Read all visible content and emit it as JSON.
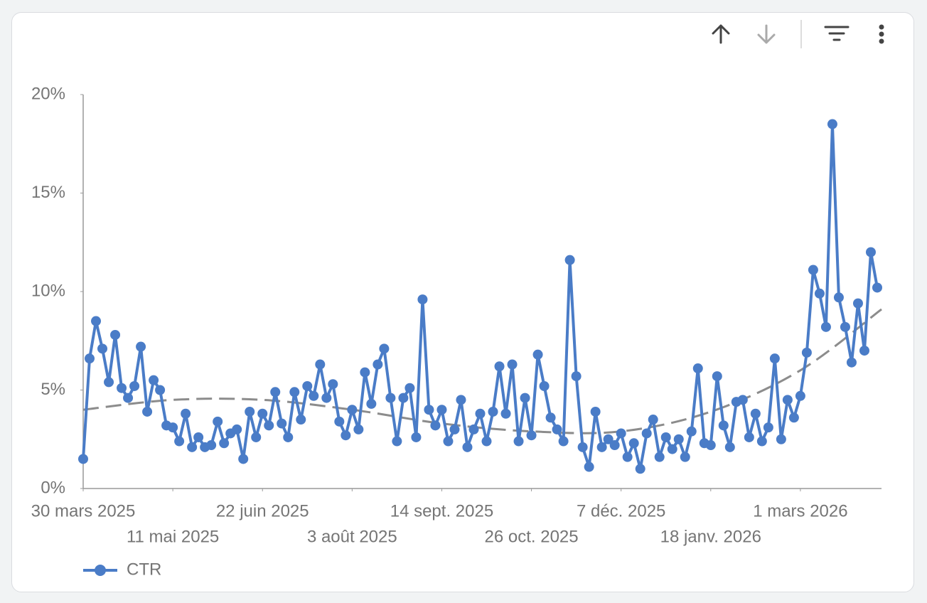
{
  "chart_data": {
    "type": "line",
    "x": [
      "2025-03-30",
      "2025-04-02",
      "2025-04-05",
      "2025-04-08",
      "2025-04-11",
      "2025-04-14",
      "2025-04-17",
      "2025-04-20",
      "2025-04-23",
      "2025-04-26",
      "2025-04-29",
      "2025-05-02",
      "2025-05-05",
      "2025-05-08",
      "2025-05-11",
      "2025-05-14",
      "2025-05-17",
      "2025-05-20",
      "2025-05-23",
      "2025-05-26",
      "2025-05-29",
      "2025-06-01",
      "2025-06-04",
      "2025-06-07",
      "2025-06-10",
      "2025-06-13",
      "2025-06-16",
      "2025-06-19",
      "2025-06-22",
      "2025-06-25",
      "2025-06-28",
      "2025-07-01",
      "2025-07-04",
      "2025-07-07",
      "2025-07-10",
      "2025-07-13",
      "2025-07-16",
      "2025-07-19",
      "2025-07-22",
      "2025-07-25",
      "2025-07-28",
      "2025-07-31",
      "2025-08-03",
      "2025-08-06",
      "2025-08-09",
      "2025-08-12",
      "2025-08-15",
      "2025-08-18",
      "2025-08-21",
      "2025-08-24",
      "2025-08-27",
      "2025-08-30",
      "2025-09-02",
      "2025-09-05",
      "2025-09-08",
      "2025-09-11",
      "2025-09-14",
      "2025-09-17",
      "2025-09-20",
      "2025-09-23",
      "2025-09-26",
      "2025-09-29",
      "2025-10-02",
      "2025-10-05",
      "2025-10-08",
      "2025-10-11",
      "2025-10-14",
      "2025-10-17",
      "2025-10-20",
      "2025-10-23",
      "2025-10-26",
      "2025-10-29",
      "2025-11-01",
      "2025-11-04",
      "2025-11-07",
      "2025-11-10",
      "2025-11-13",
      "2025-11-16",
      "2025-11-19",
      "2025-11-22",
      "2025-11-25",
      "2025-11-28",
      "2025-12-01",
      "2025-12-04",
      "2025-12-07",
      "2025-12-10",
      "2025-12-13",
      "2025-12-16",
      "2025-12-19",
      "2025-12-22",
      "2025-12-25",
      "2025-12-28",
      "2025-12-31",
      "2026-01-03",
      "2026-01-06",
      "2026-01-09",
      "2026-01-12",
      "2026-01-15",
      "2026-01-18",
      "2026-01-21",
      "2026-01-24",
      "2026-01-27",
      "2026-01-30",
      "2026-02-02",
      "2026-02-05",
      "2026-02-08",
      "2026-02-11",
      "2026-02-14",
      "2026-02-17",
      "2026-02-20",
      "2026-02-23",
      "2026-02-26",
      "2026-03-01",
      "2026-03-04",
      "2026-03-07",
      "2026-03-10",
      "2026-03-13",
      "2026-03-16",
      "2026-03-19",
      "2026-03-22",
      "2026-03-25",
      "2026-03-28",
      "2026-03-31",
      "2026-04-03",
      "2026-04-06"
    ],
    "series": [
      {
        "name": "CTR",
        "color": "#4a7cc7",
        "values": [
          1.5,
          6.6,
          8.5,
          7.1,
          5.4,
          7.8,
          5.1,
          4.6,
          5.2,
          7.2,
          3.9,
          5.5,
          5.0,
          3.2,
          3.1,
          2.4,
          3.8,
          2.1,
          2.6,
          2.1,
          2.2,
          3.4,
          2.3,
          2.8,
          3.0,
          1.5,
          3.9,
          2.6,
          3.8,
          3.2,
          4.9,
          3.3,
          2.6,
          4.9,
          3.5,
          5.2,
          4.7,
          6.3,
          4.6,
          5.3,
          3.4,
          2.7,
          4.0,
          3.0,
          5.9,
          4.3,
          6.3,
          7.1,
          4.6,
          2.4,
          4.6,
          5.1,
          2.6,
          9.6,
          4.0,
          3.2,
          4.0,
          2.4,
          3.0,
          4.5,
          2.1,
          3.0,
          3.8,
          2.4,
          3.9,
          6.2,
          3.8,
          6.3,
          2.4,
          4.6,
          2.7,
          6.8,
          5.2,
          3.6,
          3.0,
          2.4,
          11.6,
          5.7,
          2.1,
          1.1,
          3.9,
          2.1,
          2.5,
          2.2,
          2.8,
          1.6,
          2.3,
          1.0,
          2.8,
          3.5,
          1.6,
          2.6,
          2.0,
          2.5,
          1.6,
          2.9,
          6.1,
          2.3,
          2.2,
          5.7,
          3.2,
          2.1,
          4.4,
          4.5,
          2.6,
          3.8,
          2.4,
          3.1,
          6.6,
          2.5,
          4.5,
          3.6,
          4.7,
          6.9,
          11.1,
          9.9,
          8.2,
          18.5,
          9.7,
          8.2,
          6.4,
          9.4,
          7.0,
          12.0,
          10.2
        ]
      }
    ],
    "trendline": {
      "color": "#8c8c8c",
      "x": [
        "2025-03-30",
        "2025-05-11",
        "2025-06-22",
        "2025-08-03",
        "2025-09-14",
        "2025-10-26",
        "2025-12-07",
        "2026-01-18",
        "2026-03-01",
        "2026-04-08"
      ],
      "values": [
        4.0,
        4.5,
        4.5,
        4.0,
        3.3,
        2.9,
        2.9,
        3.9,
        6.0,
        9.1
      ]
    },
    "xlim": [
      "2025-03-30",
      "2026-04-08"
    ],
    "xticks": [
      {
        "value": "2025-03-30",
        "label": "30 mars 2025"
      },
      {
        "value": "2025-05-11",
        "label": "11 mai 2025"
      },
      {
        "value": "2025-06-22",
        "label": "22 juin 2025"
      },
      {
        "value": "2025-08-03",
        "label": "3 août 2025"
      },
      {
        "value": "2025-09-14",
        "label": "14 sept. 2025"
      },
      {
        "value": "2025-10-26",
        "label": "26 oct. 2025"
      },
      {
        "value": "2025-12-07",
        "label": "7 déc. 2025"
      },
      {
        "value": "2026-01-18",
        "label": "18 janv. 2026"
      },
      {
        "value": "2026-03-01",
        "label": "1 mars 2026"
      }
    ],
    "ylim": [
      0,
      20
    ],
    "yticks": [
      {
        "value": 0,
        "label": "0%"
      },
      {
        "value": 5,
        "label": "5%"
      },
      {
        "value": 10,
        "label": "10%"
      },
      {
        "value": 15,
        "label": "15%"
      },
      {
        "value": 20,
        "label": "20%"
      }
    ],
    "legend": "bottom-left"
  }
}
